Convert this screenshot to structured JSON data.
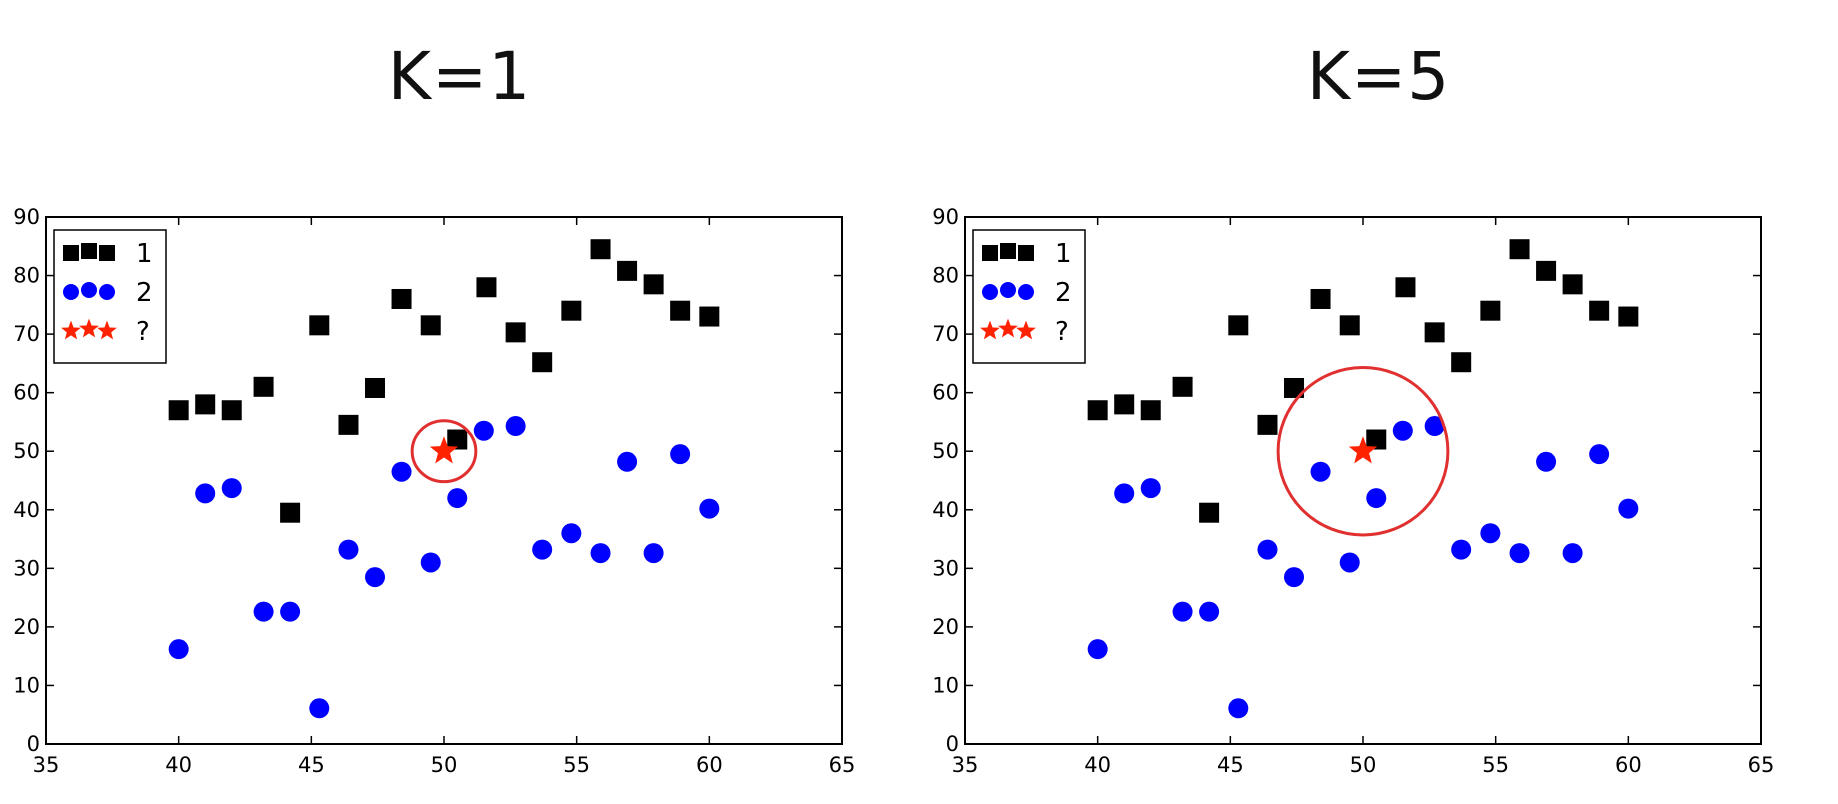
{
  "chart_data": [
    {
      "type": "scatter",
      "title": "K=1",
      "xlim": [
        35,
        65
      ],
      "ylim": [
        0,
        90
      ],
      "xticks": [
        35,
        40,
        45,
        50,
        55,
        60,
        65
      ],
      "yticks": [
        0,
        10,
        20,
        30,
        40,
        50,
        60,
        70,
        80,
        90
      ],
      "legend_position": "top-left",
      "series": [
        {
          "name": "1",
          "marker": "square",
          "color": "#000000",
          "points": [
            [
              40,
              57
            ],
            [
              41,
              58
            ],
            [
              42,
              57
            ],
            [
              43.2,
              61
            ],
            [
              44.2,
              39.5
            ],
            [
              45.3,
              71.5
            ],
            [
              46.4,
              54.5
            ],
            [
              47.4,
              60.8
            ],
            [
              48.4,
              76
            ],
            [
              49.5,
              71.5
            ],
            [
              50.5,
              52
            ],
            [
              51.6,
              78
            ],
            [
              52.7,
              70.3
            ],
            [
              53.7,
              65.2
            ],
            [
              54.8,
              74
            ],
            [
              55.9,
              84.5
            ],
            [
              56.9,
              80.8
            ],
            [
              57.9,
              78.5
            ],
            [
              58.9,
              74
            ],
            [
              60,
              73
            ]
          ]
        },
        {
          "name": "2",
          "marker": "circle",
          "color": "#0000ff",
          "points": [
            [
              40,
              16.2
            ],
            [
              41,
              42.8
            ],
            [
              42,
              43.7
            ],
            [
              43.2,
              22.6
            ],
            [
              44.2,
              22.6
            ],
            [
              45.3,
              6.1
            ],
            [
              46.4,
              33.2
            ],
            [
              47.4,
              28.5
            ],
            [
              48.4,
              46.5
            ],
            [
              49.5,
              31
            ],
            [
              50.5,
              42
            ],
            [
              51.5,
              53.5
            ],
            [
              52.7,
              54.3
            ],
            [
              53.7,
              33.2
            ],
            [
              54.8,
              36
            ],
            [
              55.9,
              32.6
            ],
            [
              56.9,
              48.2
            ],
            [
              57.9,
              32.6
            ],
            [
              58.9,
              49.5
            ],
            [
              60,
              40.2
            ]
          ]
        },
        {
          "name": "?",
          "marker": "star",
          "color": "#ff2200",
          "points": [
            [
              50,
              50
            ]
          ]
        }
      ],
      "annotations": [
        {
          "type": "circle",
          "center": [
            50,
            50
          ],
          "rx": 1.2,
          "ry": 5.2,
          "color": "#e03030"
        }
      ]
    },
    {
      "type": "scatter",
      "title": "K=5",
      "xlim": [
        35,
        65
      ],
      "ylim": [
        0,
        90
      ],
      "xticks": [
        35,
        40,
        45,
        50,
        55,
        60,
        65
      ],
      "yticks": [
        0,
        10,
        20,
        30,
        40,
        50,
        60,
        70,
        80,
        90
      ],
      "legend_position": "top-left",
      "series": [
        {
          "name": "1",
          "marker": "square",
          "color": "#000000",
          "points": [
            [
              40,
              57
            ],
            [
              41,
              58
            ],
            [
              42,
              57
            ],
            [
              43.2,
              61
            ],
            [
              44.2,
              39.5
            ],
            [
              45.3,
              71.5
            ],
            [
              46.4,
              54.5
            ],
            [
              47.4,
              60.8
            ],
            [
              48.4,
              76
            ],
            [
              49.5,
              71.5
            ],
            [
              50.5,
              52
            ],
            [
              51.6,
              78
            ],
            [
              52.7,
              70.3
            ],
            [
              53.7,
              65.2
            ],
            [
              54.8,
              74
            ],
            [
              55.9,
              84.5
            ],
            [
              56.9,
              80.8
            ],
            [
              57.9,
              78.5
            ],
            [
              58.9,
              74
            ],
            [
              60,
              73
            ]
          ]
        },
        {
          "name": "2",
          "marker": "circle",
          "color": "#0000ff",
          "points": [
            [
              40,
              16.2
            ],
            [
              41,
              42.8
            ],
            [
              42,
              43.7
            ],
            [
              43.2,
              22.6
            ],
            [
              44.2,
              22.6
            ],
            [
              45.3,
              6.1
            ],
            [
              46.4,
              33.2
            ],
            [
              47.4,
              28.5
            ],
            [
              48.4,
              46.5
            ],
            [
              49.5,
              31
            ],
            [
              50.5,
              42
            ],
            [
              51.5,
              53.5
            ],
            [
              52.7,
              54.3
            ],
            [
              53.7,
              33.2
            ],
            [
              54.8,
              36
            ],
            [
              55.9,
              32.6
            ],
            [
              56.9,
              48.2
            ],
            [
              57.9,
              32.6
            ],
            [
              58.9,
              49.5
            ],
            [
              60,
              40.2
            ]
          ]
        },
        {
          "name": "?",
          "marker": "star",
          "color": "#ff2200",
          "points": [
            [
              50,
              50
            ]
          ]
        }
      ],
      "annotations": [
        {
          "type": "circle",
          "center": [
            50,
            50
          ],
          "rx": 3.2,
          "ry": 14.3,
          "color": "#e03030"
        }
      ]
    }
  ]
}
